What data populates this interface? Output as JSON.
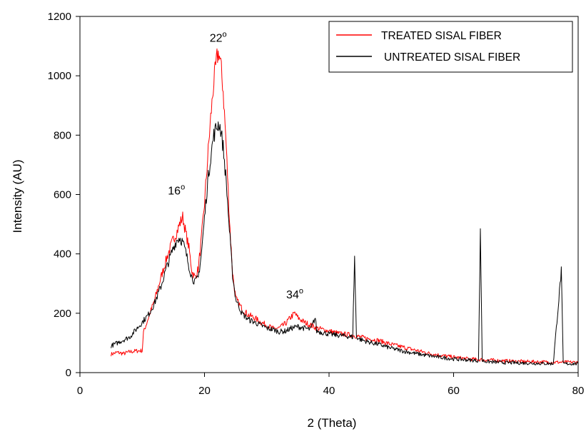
{
  "chart_data": {
    "type": "line",
    "xlabel": "2 (Theta)",
    "ylabel": "Intensity (AU)",
    "xlim": [
      0,
      80
    ],
    "ylim": [
      0,
      1200
    ],
    "xticks": [
      "0",
      "20",
      "40",
      "60",
      "80"
    ],
    "yticks": [
      "0",
      "200",
      "400",
      "600",
      "800",
      "1000",
      "1200"
    ],
    "grid": false,
    "legend_position": "top-right",
    "series": [
      {
        "name": "TREATED SISAL FIBER",
        "color": "#ff0000",
        "x": [
          5,
          6,
          7,
          8,
          9,
          10,
          10.2,
          11,
          12,
          13,
          14,
          15,
          15.5,
          16,
          16.5,
          17,
          17.5,
          18,
          18.5,
          19,
          19.5,
          20,
          20.5,
          21,
          21.5,
          22,
          22.3,
          22.6,
          23,
          23.5,
          24,
          24.5,
          25,
          26,
          27,
          28,
          29,
          30,
          31,
          32,
          33,
          34,
          34.5,
          35,
          36,
          37,
          38,
          39,
          40,
          41,
          42,
          43,
          44,
          45,
          46,
          47,
          48,
          50,
          52,
          54,
          56,
          58,
          60,
          62,
          64,
          66,
          68,
          70,
          72,
          74,
          76,
          78,
          80
        ],
        "y": [
          62,
          68,
          64,
          70,
          73,
          74,
          135,
          185,
          245,
          320,
          390,
          450,
          470,
          500,
          525,
          470,
          420,
          340,
          320,
          350,
          450,
          570,
          720,
          860,
          980,
          1060,
          1080,
          1040,
          950,
          760,
          520,
          340,
          250,
          215,
          195,
          185,
          170,
          160,
          148,
          150,
          165,
          190,
          200,
          185,
          170,
          160,
          150,
          145,
          140,
          135,
          130,
          128,
          125,
          120,
          115,
          112,
          108,
          95,
          85,
          75,
          65,
          58,
          52,
          47,
          44,
          42,
          40,
          38,
          37,
          36,
          35,
          35,
          35
        ]
      },
      {
        "name": "UNTREATED SISAL FIBER",
        "color": "#000000",
        "x": [
          5,
          6,
          7,
          8,
          9,
          10,
          11,
          12,
          13,
          14,
          15,
          15.5,
          16,
          16.5,
          17,
          17.5,
          18,
          18.5,
          19,
          19.5,
          20,
          20.5,
          21,
          21.5,
          22,
          22.3,
          22.6,
          23,
          23.5,
          24,
          24.5,
          25,
          26,
          27,
          28,
          29,
          30,
          31,
          32,
          33,
          34,
          35,
          36,
          37,
          37.8,
          38,
          39,
          40,
          41,
          42,
          43,
          43.8,
          44.1,
          44.4,
          45,
          46,
          47,
          48,
          50,
          52,
          54,
          56,
          58,
          60,
          62,
          64,
          64.3,
          64.6,
          65,
          66,
          68,
          70,
          72,
          74,
          76,
          77.3,
          77.6,
          78,
          80
        ],
        "y": [
          90,
          100,
          110,
          120,
          145,
          170,
          195,
          235,
          290,
          360,
          420,
          445,
          455,
          440,
          405,
          360,
          320,
          305,
          320,
          400,
          520,
          640,
          730,
          800,
          830,
          840,
          820,
          760,
          640,
          480,
          330,
          250,
          200,
          180,
          170,
          160,
          150,
          145,
          138,
          140,
          150,
          155,
          150,
          145,
          185,
          140,
          135,
          130,
          127,
          125,
          122,
          120,
          390,
          120,
          112,
          105,
          100,
          95,
          82,
          72,
          64,
          57,
          51,
          46,
          43,
          40,
          470,
          40,
          38,
          36,
          34,
          33,
          32,
          31,
          30,
          345,
          30,
          30,
          30
        ]
      }
    ],
    "annotations": [
      {
        "text": "16",
        "superscript": "o",
        "x": 15.5,
        "y": 600
      },
      {
        "text": "22",
        "superscript": "o",
        "x": 22.2,
        "y": 1115
      },
      {
        "text": "34",
        "superscript": "o",
        "x": 34.5,
        "y": 250
      }
    ]
  }
}
